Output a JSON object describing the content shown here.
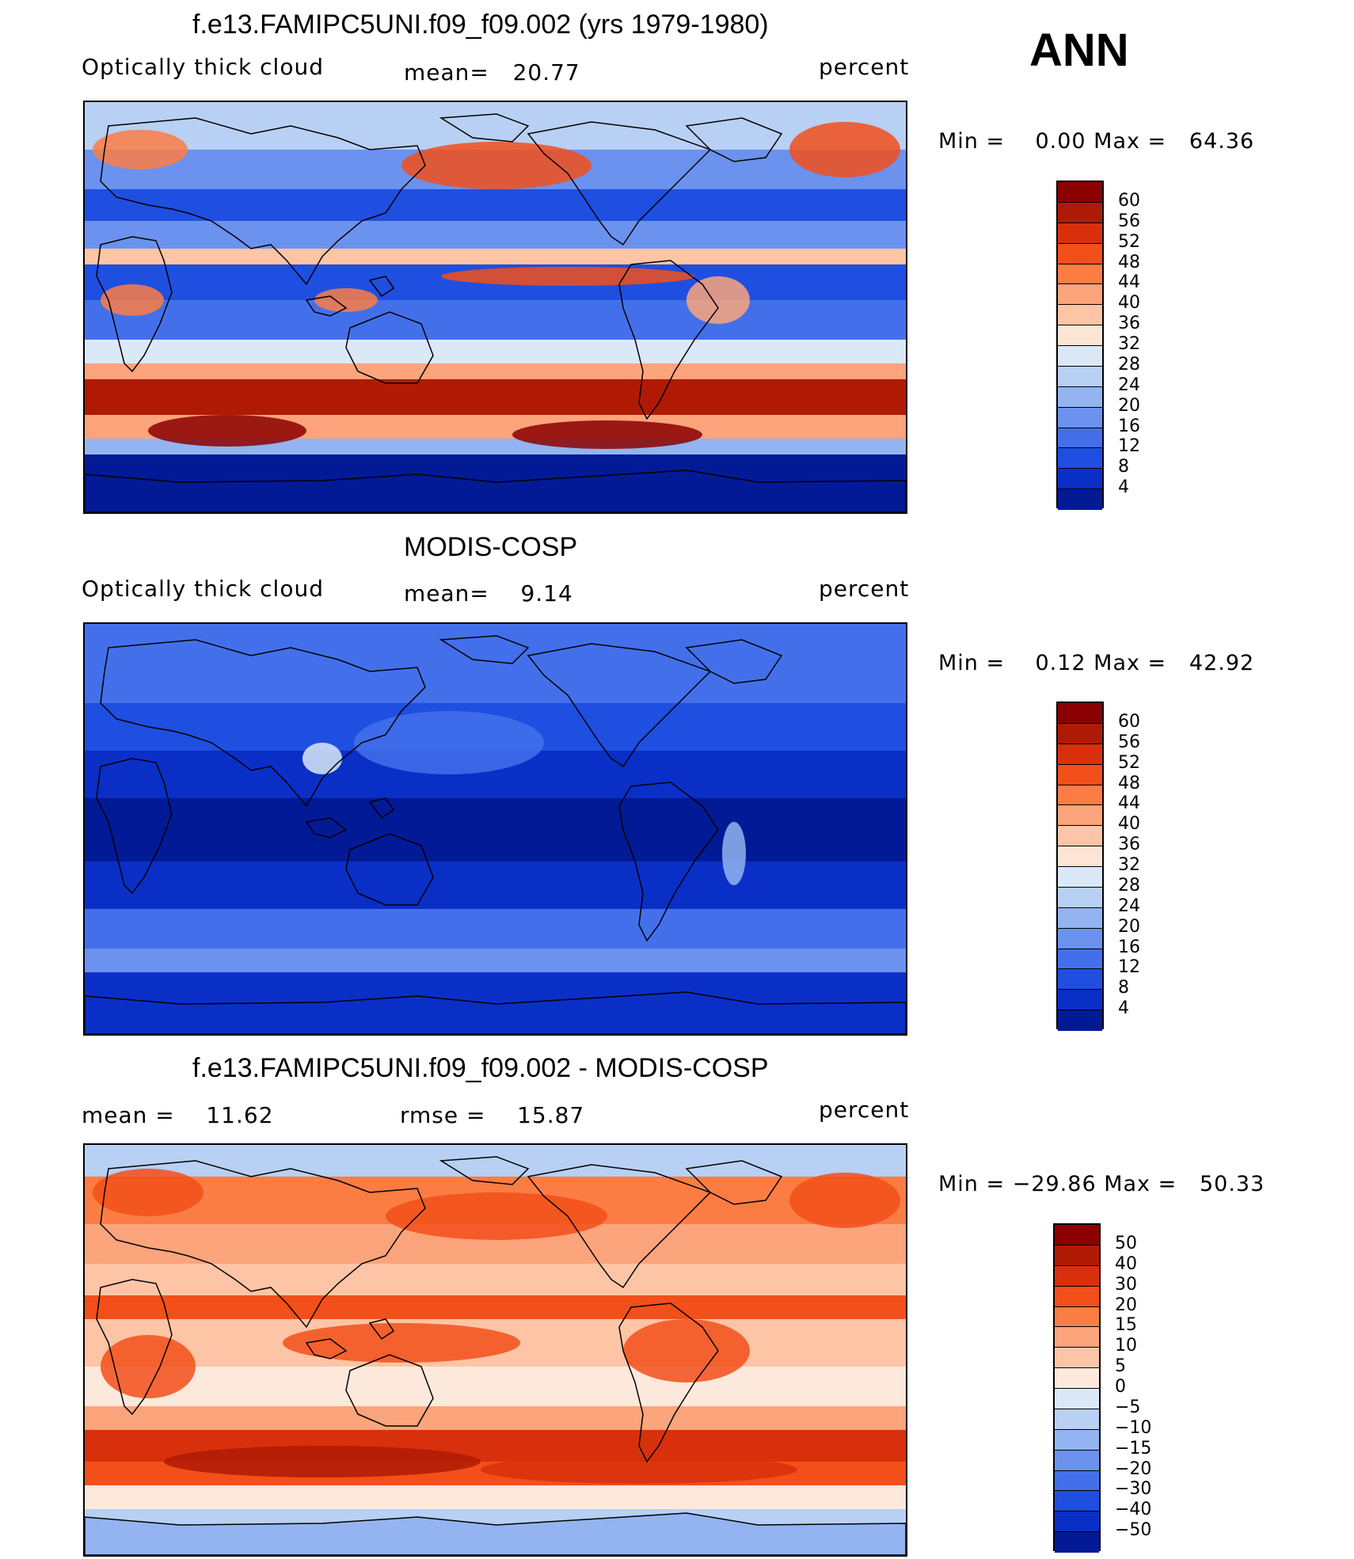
{
  "season": "ANN",
  "panels": [
    {
      "id": "model",
      "title": "f.e13.FAMIPC5UNI.f09_f09.002 (yrs 1979-1980)",
      "left_label": "Optically thick cloud",
      "center_label": "mean=   20.77",
      "right_label": "percent",
      "minmax": "Min =    0.00 Max =   64.36",
      "colorbar_ticks": [
        "60",
        "56",
        "52",
        "48",
        "44",
        "40",
        "36",
        "32",
        "28",
        "24",
        "20",
        "16",
        "12",
        "8",
        "4"
      ],
      "colorbar_colors": [
        "#8b0000",
        "#b01a05",
        "#d8300c",
        "#f24f1a",
        "#fb7d44",
        "#fca47b",
        "#fdc5a5",
        "#fde5d5",
        "#dbe8f8",
        "#b8d0f3",
        "#93b4f0",
        "#6b92ee",
        "#4370ea",
        "#1f4fe0",
        "#0a2fc7",
        "#021a96"
      ],
      "map_style": "model"
    },
    {
      "id": "obs",
      "title": "MODIS-COSP",
      "left_label": "Optically thick cloud",
      "center_label": "mean=    9.14",
      "right_label": "percent",
      "minmax": "Min =    0.12 Max =   42.92",
      "colorbar_ticks": [
        "60",
        "56",
        "52",
        "48",
        "44",
        "40",
        "36",
        "32",
        "28",
        "24",
        "20",
        "16",
        "12",
        "8",
        "4"
      ],
      "colorbar_colors": [
        "#8b0000",
        "#b01a05",
        "#d8300c",
        "#f24f1a",
        "#fb7d44",
        "#fca47b",
        "#fdc5a5",
        "#fde5d5",
        "#dbe8f8",
        "#b8d0f3",
        "#93b4f0",
        "#6b92ee",
        "#4370ea",
        "#1f4fe0",
        "#0a2fc7",
        "#021a96"
      ],
      "map_style": "obs"
    },
    {
      "id": "diff",
      "title": "f.e13.FAMIPC5UNI.f09_f09.002 - MODIS-COSP",
      "left_label": "mean =    11.62",
      "center_label": "rmse =    15.87",
      "right_label": "percent",
      "minmax": "Min = −29.86 Max =   50.33",
      "colorbar_ticks": [
        "50",
        "40",
        "30",
        "20",
        "15",
        "10",
        "5",
        "0",
        "−5",
        "−10",
        "−15",
        "−20",
        "−30",
        "−40",
        "−50"
      ],
      "colorbar_colors": [
        "#8b0000",
        "#b01a05",
        "#d8300c",
        "#f24f1a",
        "#fb7d44",
        "#fca47b",
        "#fdc5a5",
        "#fde8dc",
        "#dbe8f8",
        "#b8d0f3",
        "#93b4f0",
        "#6b92ee",
        "#4370ea",
        "#1f4fe0",
        "#0a2fc7",
        "#021a96"
      ],
      "map_style": "diff"
    }
  ]
}
